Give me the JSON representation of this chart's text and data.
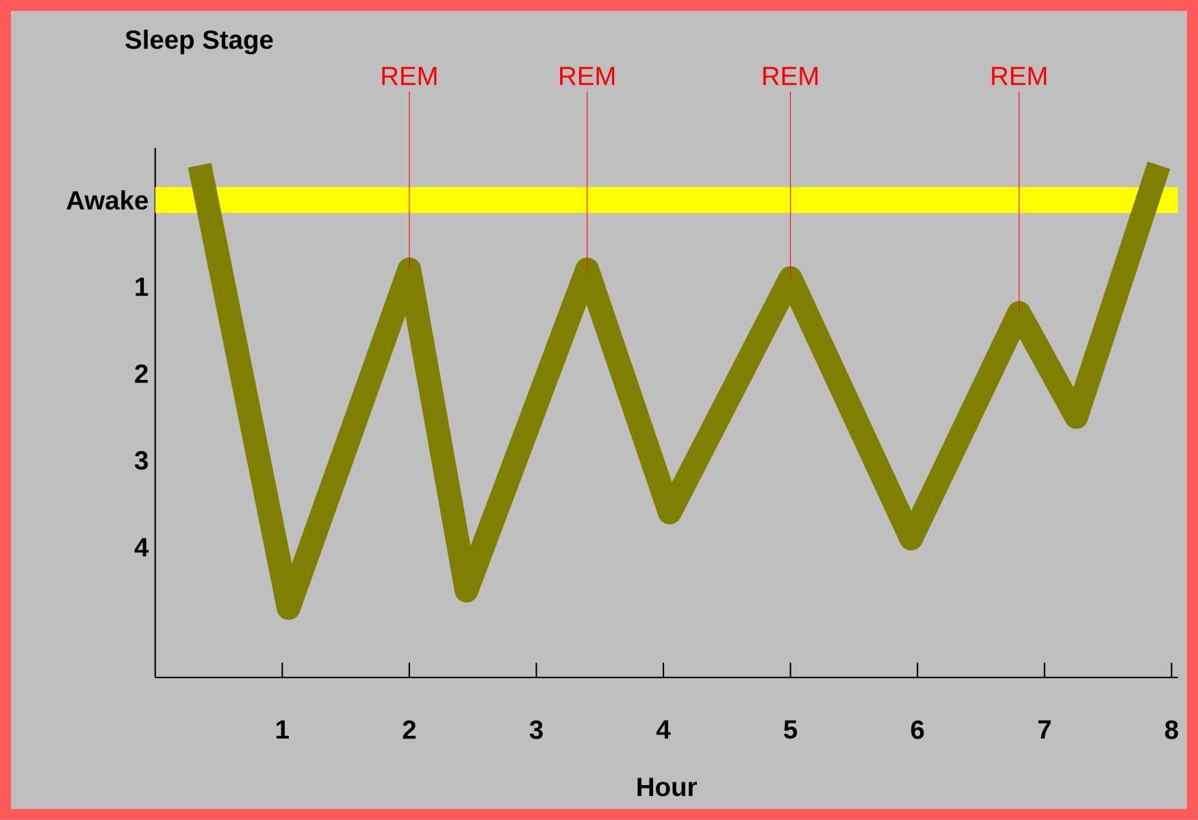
{
  "chart_data": {
    "type": "line",
    "xlabel": "Hour",
    "ylabel": "Sleep Stage",
    "x": [
      0.35,
      1.05,
      2.0,
      2.45,
      3.4,
      4.05,
      5.0,
      5.95,
      6.8,
      7.25,
      7.9
    ],
    "series": [
      {
        "color": "#808000",
        "values": [
          -0.4,
          4.7,
          0.8,
          4.5,
          0.8,
          3.6,
          0.9,
          3.9,
          1.3,
          2.5,
          -0.4
        ]
      }
    ],
    "xlim": [
      0,
      8.05
    ],
    "xticks": [
      1,
      2,
      3,
      4,
      5,
      6,
      7,
      8
    ],
    "ylim": [
      5.5,
      -0.6
    ],
    "yticks": [
      {
        "value": 0,
        "label": "Awake"
      },
      {
        "value": 1,
        "label": "1"
      },
      {
        "value": 2,
        "label": "2"
      },
      {
        "value": 3,
        "label": "3"
      },
      {
        "value": 4,
        "label": "4"
      }
    ],
    "bands": [
      {
        "axis": "y",
        "from": -0.15,
        "to": 0.15,
        "color": "#ffff00"
      }
    ],
    "annotations": [
      {
        "text": "REM",
        "x": 2.0,
        "y": 0.8
      },
      {
        "text": "REM",
        "x": 3.4,
        "y": 0.8
      },
      {
        "text": "REM",
        "x": 5.0,
        "y": 0.9
      },
      {
        "text": "REM",
        "x": 6.8,
        "y": 1.3
      }
    ],
    "marker": "none",
    "line_style": "solid"
  }
}
